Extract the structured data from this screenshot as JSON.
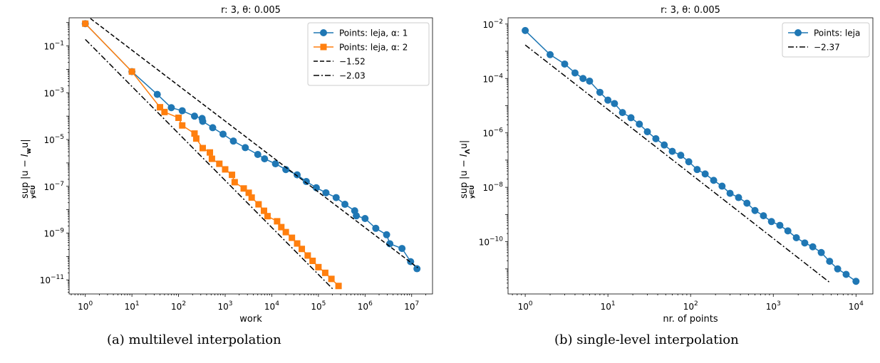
{
  "captions": [
    "(a) multilevel interpolation",
    "(b) single-level interpolation"
  ],
  "chart_data": [
    {
      "type": "line",
      "title": "r: 3, θ: 0.005",
      "xlabel": "work",
      "ylabel": "sup_{y∈U} |u − I_w u|",
      "xscale": "log",
      "yscale": "log",
      "xlim": [
        0.45,
        28000000.0
      ],
      "ylim": [
        2.5e-12,
        1.6
      ],
      "xticks": [
        1,
        10,
        100,
        1000,
        10000,
        100000,
        1000000,
        10000000
      ],
      "xticklabels": [
        "10^0",
        "10^1",
        "10^2",
        "10^3",
        "10^4",
        "10^5",
        "10^6",
        "10^7"
      ],
      "yticks": [
        0.1,
        0.001,
        1e-05,
        1e-07,
        1e-09,
        1e-11
      ],
      "yticklabels": [
        "10^-1",
        "10^-3",
        "10^-5",
        "10^-7",
        "10^-9",
        "10^-11"
      ],
      "grid": false,
      "legend_position": "top-right",
      "series": [
        {
          "name": "Points: leja, α: 1",
          "color": "#1f77b4",
          "marker": "circle",
          "x": [
            1,
            10,
            35,
            70,
            120,
            220,
            320,
            330,
            540,
            900,
            1500,
            2700,
            5000,
            7000,
            12000,
            20000,
            35000,
            55000,
            90000,
            145000,
            240000,
            370000,
            600000,
            650000,
            1000000,
            1700000,
            2900000,
            3400000,
            6200000,
            9500000,
            13000000
          ],
          "y": [
            0.9,
            0.008,
            0.00085,
            0.00023,
            0.00017,
            0.0001,
            8e-05,
            6e-05,
            3.2e-05,
            1.7e-05,
            8.6e-06,
            4.5e-06,
            2.3e-06,
            1.5e-06,
            9.2e-07,
            5.2e-07,
            3.1e-07,
            1.6e-07,
            8.7e-08,
            5.3e-08,
            3.3e-08,
            1.7e-08,
            9e-09,
            5.5e-09,
            4.2e-09,
            1.6e-09,
            8.5e-10,
            3.5e-10,
            2.2e-10,
            6e-11,
            3e-11
          ]
        },
        {
          "name": "Points: leja, α: 2",
          "color": "#ff7f0e",
          "marker": "square",
          "x": [
            1,
            10,
            40,
            50,
            100,
            120,
            220,
            240,
            330,
            470,
            520,
            750,
            1000,
            1400,
            1600,
            2500,
            3200,
            3700,
            5200,
            6800,
            8100,
            13000,
            16000,
            20000,
            27000,
            35000,
            44000,
            59000,
            75000,
            100000,
            140000,
            190000,
            270000
          ],
          "y": [
            0.9,
            0.008,
            0.00024,
            0.00015,
            8.5e-05,
            4e-05,
            1.8e-05,
            1.1e-05,
            4.3e-06,
            2.8e-06,
            1.5e-06,
            9.2e-07,
            5.3e-07,
            3.1e-07,
            1.5e-07,
            8.1e-08,
            5.3e-08,
            3.3e-08,
            1.7e-08,
            9e-09,
            5.3e-09,
            3.2e-09,
            1.8e-09,
            1.1e-09,
            6.3e-10,
            3.6e-10,
            2.1e-10,
            1.1e-10,
            6.5e-11,
            3.5e-11,
            2e-11,
            1.1e-11,
            5.5e-12
          ]
        },
        {
          "name": "−1.52",
          "color": "#000000",
          "style": "dashed",
          "x": [
            1,
            13500000
          ],
          "y": [
            2.2,
            3.3e-11
          ]
        },
        {
          "name": "−2.03",
          "color": "#000000",
          "style": "dashdot",
          "x": [
            1,
            210000
          ],
          "y": [
            0.19,
            3.8e-12
          ]
        }
      ]
    },
    {
      "type": "line",
      "title": "r: 3, θ: 0.005",
      "xlabel": "nr. of points",
      "ylabel": "sup_{y∈U} |u − I_Λ u|",
      "xscale": "log",
      "yscale": "log",
      "xlim": [
        0.62,
        16000
      ],
      "ylim": [
        1.2e-12,
        0.017
      ],
      "xticks": [
        1,
        10,
        100,
        1000,
        10000
      ],
      "xticklabels": [
        "10^0",
        "10^1",
        "10^2",
        "10^3",
        "10^4"
      ],
      "yticks": [
        0.01,
        0.0001,
        1e-06,
        1e-08,
        1e-10
      ],
      "yticklabels": [
        "10^-2",
        "10^-4",
        "10^-6",
        "10^-8",
        "10^-10"
      ],
      "grid": false,
      "legend_position": "top-right",
      "series": [
        {
          "name": "Points: leja",
          "color": "#1f77b4",
          "marker": "circle",
          "x": [
            1,
            2,
            3,
            4,
            5,
            6,
            8,
            10,
            12,
            15,
            19,
            24,
            30,
            38,
            48,
            60,
            76,
            95,
            120,
            150,
            190,
            240,
            300,
            380,
            480,
            600,
            760,
            950,
            1200,
            1500,
            1900,
            2400,
            3000,
            3800,
            4800,
            6000,
            7600,
            10000
          ],
          "y": [
            0.0058,
            0.00075,
            0.00034,
            0.00016,
            0.0001,
            8e-05,
            3.1e-05,
            1.6e-05,
            1.2e-05,
            5.6e-06,
            3.6e-06,
            2.1e-06,
            1.1e-06,
            6.1e-07,
            3.6e-07,
            2.1e-07,
            1.5e-07,
            8.7e-08,
            4.5e-08,
            3.1e-08,
            1.8e-08,
            1.1e-08,
            6e-09,
            4.2e-09,
            2.6e-09,
            1.4e-09,
            9e-10,
            5.5e-10,
            4e-10,
            2.5e-10,
            1.4e-10,
            9e-11,
            6.5e-11,
            4e-11,
            1.9e-11,
            1e-11,
            6.3e-12,
            3.5e-12
          ]
        },
        {
          "name": "−2.37",
          "color": "#000000",
          "style": "dashdot",
          "x": [
            1,
            4800
          ],
          "y": [
            0.0017,
            3.2e-12
          ]
        }
      ]
    }
  ]
}
